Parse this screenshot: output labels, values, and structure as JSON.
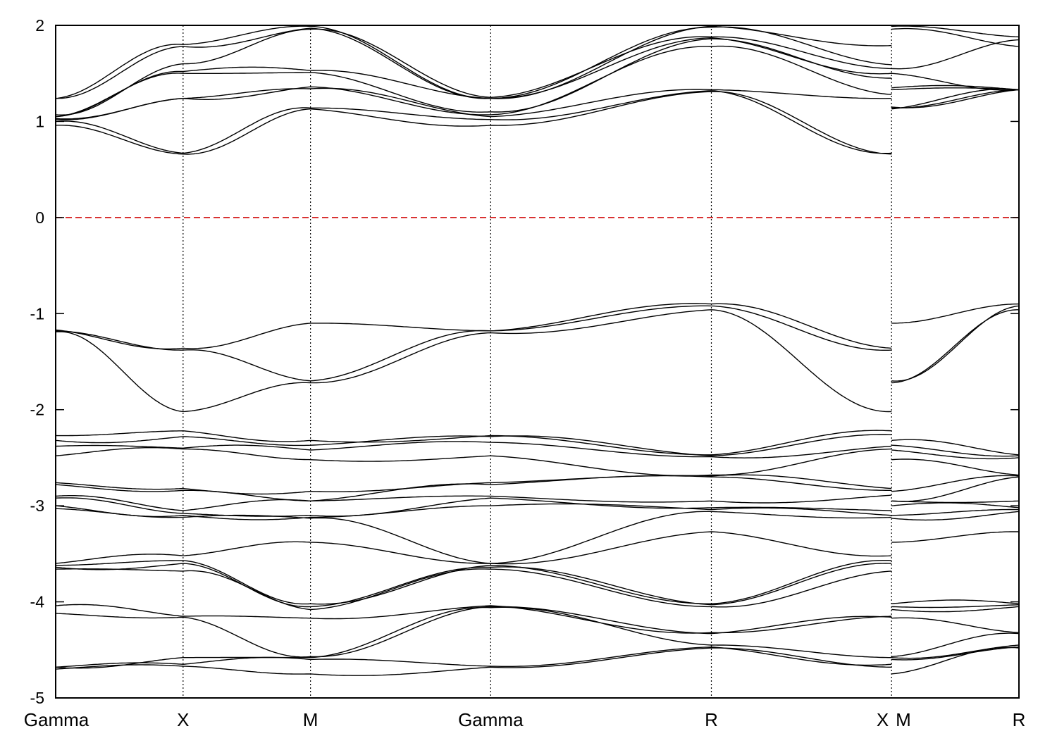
{
  "chart_data": {
    "type": "line",
    "title": "",
    "xlabel": "",
    "ylabel": "",
    "ylim": [
      -5,
      2
    ],
    "yticks": [
      2,
      1,
      0,
      -1,
      -2,
      -3,
      -4,
      -5
    ],
    "ytick_labels": [
      "2",
      "1",
      "0",
      "-1",
      "-2",
      "-3",
      "-4",
      "-5"
    ],
    "grid": false,
    "legend": "none",
    "line_color": "#000000",
    "fermi_level": {
      "energy": 0,
      "color": "#d62020",
      "style": "dashed"
    },
    "kpath": {
      "segments": [
        {
          "from": "Gamma",
          "to": "X",
          "start": 0.0,
          "end": 1.0
        },
        {
          "from": "X",
          "to": "M",
          "start": 1.0,
          "end": 2.0
        },
        {
          "from": "M",
          "to": "Gamma",
          "start": 2.0,
          "end": 3.414
        },
        {
          "from": "Gamma",
          "to": "R",
          "start": 3.414,
          "end": 5.146
        },
        {
          "from": "R",
          "to": "X",
          "start": 5.146,
          "end": 6.56
        },
        {
          "from": "M",
          "to": "R",
          "start": 6.56,
          "end": 7.56
        }
      ],
      "boundaries": [
        0.0,
        1.0,
        2.0,
        3.414,
        5.146,
        6.56,
        7.56
      ],
      "xtick_labels": [
        {
          "label": "Gamma",
          "k": 0.0,
          "anchor": "middle"
        },
        {
          "label": "X",
          "k": 1.0,
          "anchor": "middle"
        },
        {
          "label": "M",
          "k": 2.0,
          "anchor": "middle"
        },
        {
          "label": "Gamma",
          "k": 3.414,
          "anchor": "middle"
        },
        {
          "label": "R",
          "k": 5.146,
          "anchor": "middle"
        },
        {
          "label": "X",
          "k": 6.56,
          "anchor": "end"
        },
        {
          "label": "M",
          "k": 6.56,
          "anchor": "start"
        },
        {
          "label": "R",
          "k": 7.56,
          "anchor": "middle"
        }
      ]
    },
    "series": [
      {
        "values": [
          [
            1.24,
            1.8,
            1.99,
            1.24,
            1.99,
            1.79
          ],
          [
            1.99,
            1.88
          ]
        ]
      },
      {
        "values": [
          [
            1.24,
            1.78,
            1.97,
            1.24,
            1.98,
            1.59
          ],
          [
            1.96,
            1.78
          ]
        ]
      },
      {
        "values": [
          [
            1.07,
            1.6,
            1.96,
            1.25,
            1.88,
            1.55
          ],
          [
            1.55,
            1.85
          ]
        ]
      },
      {
        "values": [
          [
            1.05,
            1.52,
            1.53,
            1.24,
            1.87,
            1.5
          ],
          [
            1.5,
            1.33
          ]
        ]
      },
      {
        "values": [
          [
            1.05,
            1.5,
            1.51,
            1.1,
            1.86,
            1.45
          ],
          [
            1.35,
            1.33
          ]
        ]
      },
      {
        "values": [
          [
            1.03,
            1.24,
            1.36,
            1.07,
            1.78,
            1.28
          ],
          [
            1.33,
            1.33
          ]
        ]
      },
      {
        "values": [
          [
            1.02,
            1.24,
            1.34,
            1.05,
            1.33,
            1.24
          ],
          [
            1.15,
            1.33
          ]
        ]
      },
      {
        "values": [
          [
            1.0,
            0.67,
            1.14,
            1.02,
            1.32,
            0.67
          ],
          [
            1.14,
            1.33
          ]
        ]
      },
      {
        "values": [
          [
            0.96,
            0.66,
            1.13,
            0.96,
            1.31,
            0.66
          ],
          [
            1.13,
            1.33
          ]
        ]
      },
      {
        "values": [
          [
            -1.17,
            -1.36,
            -1.1,
            -1.18,
            -0.9,
            -1.36
          ],
          [
            -1.1,
            -0.9
          ]
        ]
      },
      {
        "values": [
          [
            -1.18,
            -1.38,
            -1.7,
            -1.18,
            -0.92,
            -1.38
          ],
          [
            -1.7,
            -0.92
          ]
        ]
      },
      {
        "values": [
          [
            -1.19,
            -2.02,
            -1.72,
            -1.2,
            -0.96,
            -2.02
          ],
          [
            -1.72,
            -0.96
          ]
        ]
      },
      {
        "values": [
          [
            -2.27,
            -2.22,
            -2.32,
            -2.27,
            -2.47,
            -2.22
          ],
          [
            -2.32,
            -2.47
          ]
        ]
      },
      {
        "values": [
          [
            -2.32,
            -2.28,
            -2.37,
            -2.28,
            -2.48,
            -2.26
          ],
          [
            -2.37,
            -2.48
          ]
        ]
      },
      {
        "values": [
          [
            -2.38,
            -2.4,
            -2.42,
            -2.34,
            -2.49,
            -2.38
          ],
          [
            -2.42,
            -2.5
          ]
        ]
      },
      {
        "values": [
          [
            -2.48,
            -2.41,
            -2.52,
            -2.48,
            -2.68,
            -2.41
          ],
          [
            -2.52,
            -2.68
          ]
        ]
      },
      {
        "values": [
          [
            -2.76,
            -2.82,
            -2.85,
            -2.76,
            -2.69,
            -2.82
          ],
          [
            -2.85,
            -2.69
          ]
        ]
      },
      {
        "values": [
          [
            -2.78,
            -2.84,
            -2.95,
            -2.78,
            -2.7,
            -2.84
          ],
          [
            -2.95,
            -2.7
          ]
        ]
      },
      {
        "values": [
          [
            -2.9,
            -3.05,
            -2.95,
            -2.9,
            -2.95,
            -2.89
          ],
          [
            -2.95,
            -2.95
          ]
        ]
      },
      {
        "values": [
          [
            -2.92,
            -3.08,
            -3.1,
            -2.92,
            -3.02,
            -3.05
          ],
          [
            -3.0,
            -3.02
          ]
        ]
      },
      {
        "values": [
          [
            -3.0,
            -3.1,
            -3.12,
            -3.0,
            -3.04,
            -3.1
          ],
          [
            -3.1,
            -3.04
          ]
        ]
      },
      {
        "values": [
          [
            -3.03,
            -3.12,
            -3.13,
            -3.6,
            -3.06,
            -3.12
          ],
          [
            -3.13,
            -3.06
          ]
        ]
      },
      {
        "values": [
          [
            -3.6,
            -3.52,
            -3.38,
            -3.6,
            -3.27,
            -3.52
          ],
          [
            -3.38,
            -3.27
          ]
        ]
      },
      {
        "values": [
          [
            -3.62,
            -3.57,
            -4.02,
            -3.62,
            -4.02,
            -3.57
          ],
          [
            -4.02,
            -4.02
          ]
        ]
      },
      {
        "values": [
          [
            -3.64,
            -3.6,
            -4.05,
            -3.64,
            -4.03,
            -3.6
          ],
          [
            -4.05,
            -4.03
          ]
        ]
      },
      {
        "values": [
          [
            -3.66,
            -3.68,
            -4.08,
            -3.66,
            -4.05,
            -3.68
          ],
          [
            -4.08,
            -4.05
          ]
        ]
      },
      {
        "values": [
          [
            -4.04,
            -4.15,
            -4.17,
            -4.04,
            -4.32,
            -4.15
          ],
          [
            -4.17,
            -4.32
          ]
        ]
      },
      {
        "values": [
          [
            -4.12,
            -4.16,
            -4.57,
            -4.05,
            -4.33,
            -4.16
          ],
          [
            -4.57,
            -4.33
          ]
        ]
      },
      {
        "values": [
          [
            -4.68,
            -4.58,
            -4.58,
            -4.06,
            -4.45,
            -4.58
          ],
          [
            -4.58,
            -4.45
          ]
        ]
      },
      {
        "values": [
          [
            -4.68,
            -4.65,
            -4.6,
            -4.67,
            -4.47,
            -4.65
          ],
          [
            -4.6,
            -4.47
          ]
        ]
      },
      {
        "values": [
          [
            -4.7,
            -4.67,
            -4.75,
            -4.68,
            -4.48,
            -4.68
          ],
          [
            -4.75,
            -4.48
          ]
        ]
      }
    ]
  }
}
